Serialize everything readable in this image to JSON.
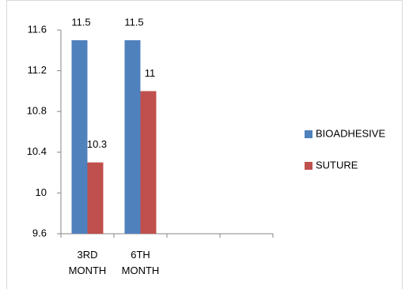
{
  "chart_data": {
    "type": "bar",
    "categories": [
      "3RD MONTH",
      "6TH MONTH",
      null,
      null
    ],
    "series": [
      {
        "name": "BIOADHESIVE",
        "color": "#4f81bd",
        "values": [
          11.5,
          11.5,
          null,
          null
        ]
      },
      {
        "name": "SUTURE",
        "color": "#c0504d",
        "values": [
          10.3,
          11,
          null,
          null
        ]
      }
    ],
    "ylim": [
      9.6,
      11.6
    ],
    "yticks": [
      9.6,
      10,
      10.4,
      10.8,
      11.2,
      11.6
    ],
    "grid": false,
    "legend": "right"
  }
}
